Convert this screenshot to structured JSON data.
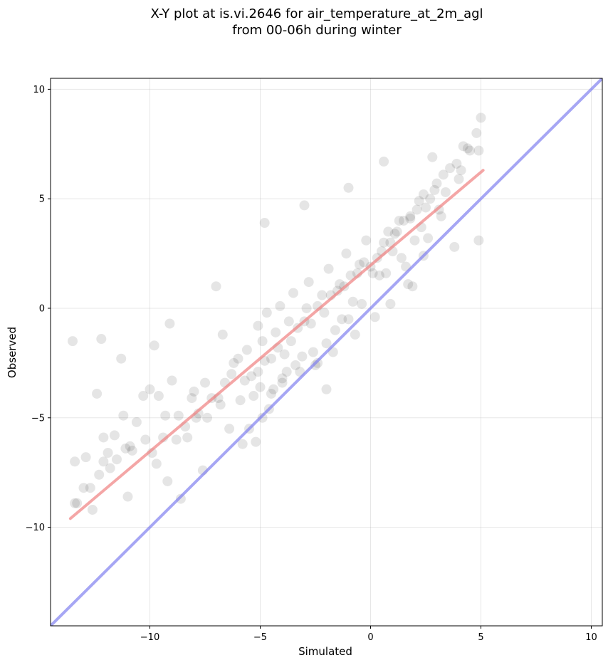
{
  "chart_data": {
    "type": "scatter",
    "title": "X-Y plot at is.vi.2646 for air_temperature_at_2m_agl",
    "subtitle": "from 00-06h during winter",
    "xlabel": "Simulated",
    "ylabel": "Observed",
    "xlim": [
      -14.5,
      10.5
    ],
    "ylim": [
      -14.5,
      10.5
    ],
    "xticks": [
      -10,
      -5,
      0,
      5,
      10
    ],
    "yticks": [
      -10,
      -5,
      0,
      5,
      10
    ],
    "xtick_labels": [
      "−10",
      "−5",
      "0",
      "5",
      "10"
    ],
    "ytick_labels": [
      "−10",
      "−5",
      "0",
      "5",
      "10"
    ],
    "grid": true,
    "legend": "none",
    "point_color": "#000000",
    "point_opacity": 0.1,
    "series": [
      {
        "role": "observations",
        "x": [
          -13.4,
          -13.3,
          -12.9,
          -12.7,
          -12.4,
          -12.1,
          -11.9,
          -11.6,
          -11.2,
          -10.9,
          -10.6,
          -10.3,
          -9.9,
          -9.6,
          -9.3,
          -9.0,
          -8.7,
          -8.4,
          -8.1,
          -7.8,
          -7.5,
          -7.2,
          -6.9,
          -6.6,
          -6.3,
          -6.0,
          -5.7,
          -5.4,
          -5.1,
          -4.8,
          -4.5,
          -4.2,
          -3.9,
          -3.6,
          -3.3,
          -3.0,
          -2.7,
          -2.4,
          -2.1,
          -1.8,
          -1.5,
          -1.2,
          -0.9,
          -0.6,
          -0.3,
          0.0,
          0.3,
          0.6,
          0.9,
          1.2,
          1.5,
          1.8,
          2.1,
          2.4,
          2.7,
          3.0,
          3.3,
          3.6,
          3.9,
          4.2,
          4.5,
          4.8,
          5.0,
          -13.4,
          -12.3,
          -11.8,
          -11.1,
          -10.2,
          -9.4,
          -8.3,
          -7.4,
          -6.4,
          -5.3,
          -4.4,
          -3.4,
          -2.4,
          -1.3,
          -0.4,
          0.7,
          1.6,
          2.6,
          3.4,
          4.4,
          -13.0,
          -12.1,
          -11.5,
          -10.8,
          -9.7,
          -8.8,
          -7.9,
          -6.8,
          -5.9,
          -5.0,
          -4.0,
          -3.1,
          -2.0,
          -1.0,
          0.1,
          1.0,
          2.0,
          3.1,
          4.1,
          4.9,
          -12.6,
          -11.0,
          -9.2,
          -7.6,
          -5.8,
          -4.6,
          -3.8,
          -2.6,
          -1.6,
          -0.8,
          0.4,
          1.4,
          2.3,
          3.2,
          4.0,
          -10.0,
          -8.0,
          -6.2,
          -5.6,
          -4.9,
          -4.3,
          -3.7,
          -2.9,
          -2.2,
          -1.4,
          -0.5,
          0.5,
          1.1,
          1.8,
          2.5,
          -11.3,
          -9.8,
          -6.7,
          -5.1,
          -4.7,
          -4.1,
          -3.5,
          -2.8,
          -1.9,
          -1.1,
          -0.2,
          0.8,
          1.3,
          2.2,
          2.9,
          -5.5,
          -4.9,
          -4.5,
          -4.0,
          -3.2,
          -2.5,
          -1.7,
          -0.7,
          0.2,
          0.9,
          1.7,
          2.4,
          -13.5,
          -12.2,
          -9.1,
          -7.0,
          -4.8,
          -3.0,
          -1.0,
          0.6,
          2.8,
          4.9,
          -8.6,
          -5.2,
          -2.0,
          1.9,
          3.8
        ],
        "y": [
          -7.0,
          -8.9,
          -6.8,
          -8.2,
          -3.9,
          -5.9,
          -6.6,
          -5.8,
          -4.9,
          -6.3,
          -5.2,
          -4.0,
          -6.6,
          -4.0,
          -4.9,
          -3.3,
          -4.9,
          -5.4,
          -4.1,
          -4.8,
          -3.4,
          -4.1,
          -4.1,
          -3.4,
          -3.0,
          -2.3,
          -3.3,
          -3.1,
          -2.9,
          -2.4,
          -2.3,
          -1.8,
          -2.1,
          -1.5,
          -0.9,
          -0.6,
          -0.7,
          0.1,
          -0.2,
          0.6,
          0.8,
          1.0,
          1.5,
          1.6,
          2.1,
          1.9,
          2.3,
          3.0,
          3.0,
          3.5,
          4.0,
          4.2,
          4.5,
          5.2,
          5.0,
          5.7,
          6.1,
          6.4,
          6.6,
          7.4,
          7.2,
          8.0,
          8.7,
          -8.9,
          -7.6,
          -7.3,
          -6.4,
          -6.0,
          -5.9,
          -5.9,
          -5.0,
          -5.5,
          -4.0,
          -3.7,
          -2.6,
          -2.5,
          -0.5,
          0.2,
          1.6,
          1.9,
          3.2,
          5.3,
          7.3,
          -8.2,
          -7.0,
          -6.9,
          -6.5,
          -7.1,
          -6.0,
          -5.0,
          -4.4,
          -4.2,
          -3.6,
          -3.4,
          -2.2,
          -1.6,
          -0.5,
          1.6,
          2.6,
          3.1,
          4.5,
          6.3,
          7.2,
          -9.2,
          -8.6,
          -7.9,
          -7.4,
          -6.2,
          -4.6,
          -2.9,
          -2.0,
          -1.0,
          0.3,
          1.5,
          2.3,
          3.7,
          4.2,
          5.9,
          -3.7,
          -3.8,
          -2.5,
          -1.9,
          -1.5,
          -1.1,
          -0.6,
          0.0,
          0.6,
          1.1,
          2.0,
          2.6,
          3.4,
          4.1,
          4.6,
          -2.3,
          -1.7,
          -1.2,
          -0.8,
          -0.2,
          0.1,
          0.7,
          1.2,
          1.8,
          2.5,
          3.1,
          3.5,
          4.0,
          4.9,
          5.4,
          -5.5,
          -5.0,
          -3.9,
          -3.2,
          -2.9,
          -2.6,
          -2.0,
          -1.2,
          -0.4,
          0.2,
          1.1,
          2.4,
          -1.5,
          -1.4,
          -0.7,
          1.0,
          3.9,
          4.7,
          5.5,
          6.7,
          6.9,
          3.1,
          -8.7,
          -6.1,
          -3.7,
          1.0,
          2.8
        ]
      },
      {
        "role": "regression-fit",
        "color": "#f08080",
        "x": [
          -13.6,
          5.1
        ],
        "y": [
          -9.6,
          6.3
        ]
      },
      {
        "role": "one-to-one",
        "color": "#8080f0",
        "x": [
          -14.5,
          10.5
        ],
        "y": [
          -14.5,
          10.5
        ]
      }
    ]
  }
}
